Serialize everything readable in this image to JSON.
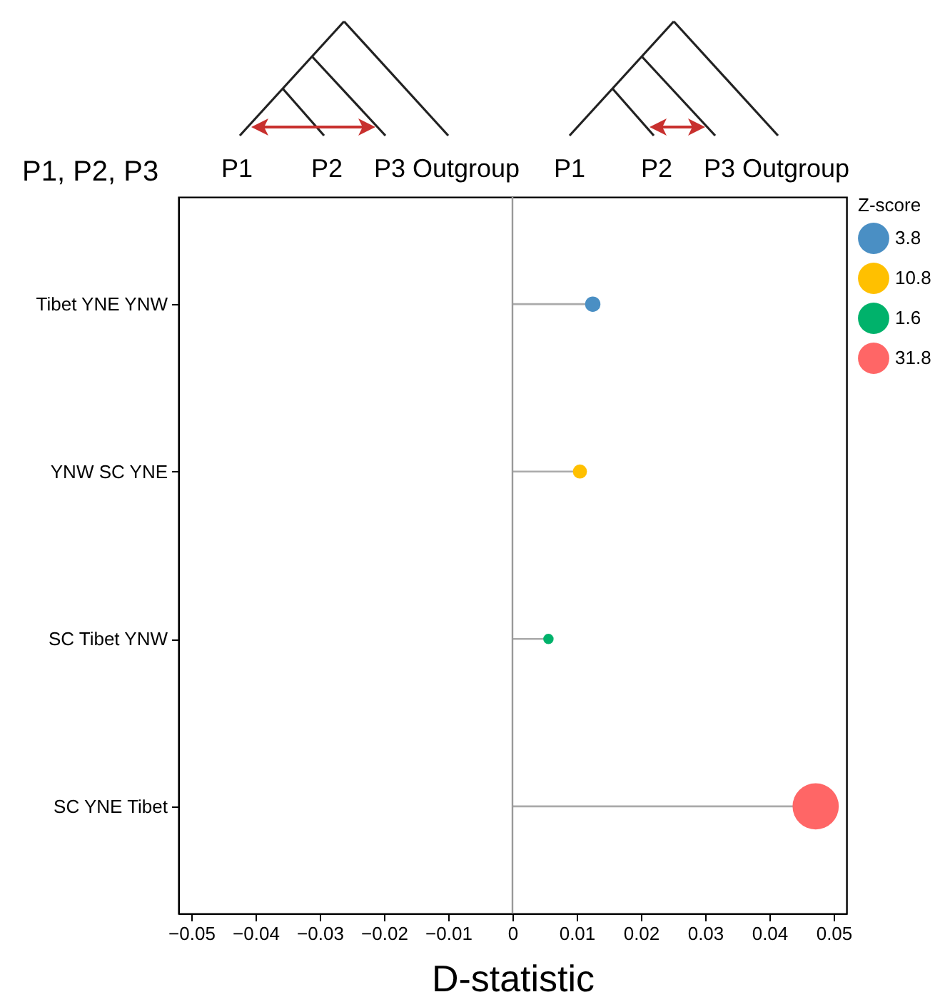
{
  "chart_data": {
    "type": "lollipop",
    "orientation": "horizontal",
    "xlabel": "D-statistic",
    "ylabel": "P1, P2, P3",
    "legend_title": "Z-score",
    "legend": "top right",
    "marker": "circle",
    "grid": false,
    "categories": [
      "Tibet YNE YNW",
      "YNW SC YNE",
      "SC Tibet YNW",
      "SC YNE Tibet"
    ],
    "series": [
      {
        "name": "3.8",
        "color": "#4a8fc4",
        "values": [
          0.0125,
          null,
          null,
          null
        ],
        "sizes": [
          0.11,
          null,
          null,
          null
        ]
      },
      {
        "name": "10.8",
        "color": "#ffc000",
        "values": [
          null,
          0.0105,
          null,
          null
        ],
        "sizes": [
          null,
          0.093,
          null,
          null
        ]
      },
      {
        "name": "1.6",
        "color": "#00b26b",
        "values": [
          null,
          null,
          0.0056,
          null
        ],
        "sizes": [
          null,
          null,
          0.05,
          null
        ]
      },
      {
        "name": "31.8",
        "color": "#ff6666",
        "values": [
          null,
          null,
          null,
          0.0472
        ],
        "sizes": [
          null,
          null,
          null,
          1
        ]
      }
    ],
    "xlim": [
      -0.052,
      0.052
    ],
    "xticks": [
      -0.05,
      -0.04,
      -0.03,
      -0.02,
      -0.01,
      0,
      0.01,
      0.02,
      0.03,
      0.04,
      0.05
    ],
    "ref_lines": [
      {
        "axis": "x",
        "value": 0,
        "color": "#999999"
      }
    ],
    "annotations": [
      "P1",
      "P2",
      "P3 Outgroup",
      "P1",
      "P2",
      "P3 Outgroup"
    ]
  }
}
